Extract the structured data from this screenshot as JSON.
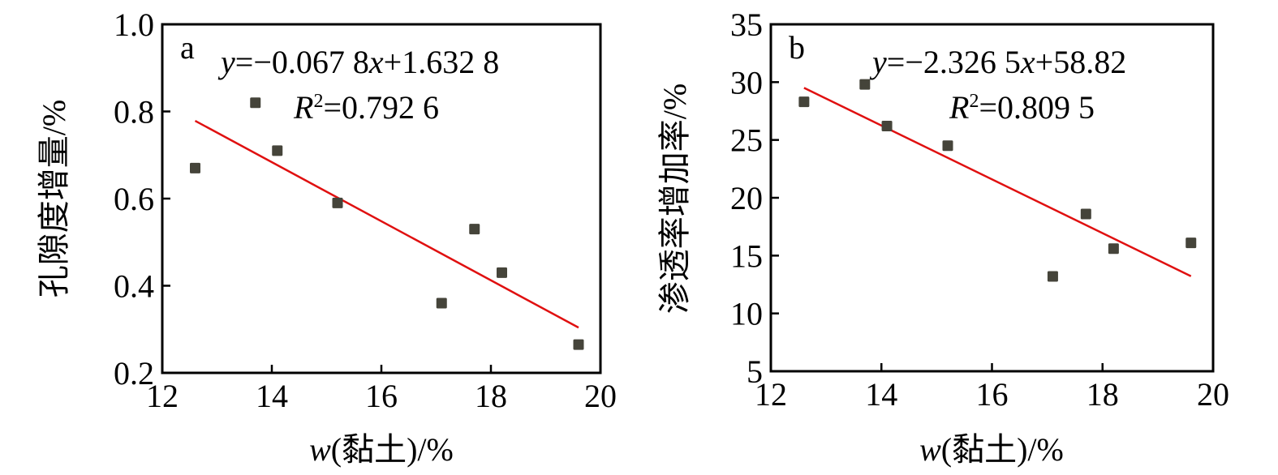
{
  "chart_data": [
    {
      "type": "scatter",
      "panel_label": "a",
      "xlabel_var": "w",
      "xlabel_rest": "(黏土)/%",
      "ylabel": "孔隙度增量/%",
      "xlim": [
        12,
        20
      ],
      "ylim": [
        0.2,
        1.0
      ],
      "xticks": [
        "12",
        "14",
        "16",
        "18",
        "20"
      ],
      "yticks": [
        "0.2",
        "0.4",
        "0.6",
        "0.8",
        "1.0"
      ],
      "x": [
        12.6,
        13.7,
        14.1,
        15.2,
        17.1,
        17.7,
        18.2,
        19.6
      ],
      "y": [
        0.67,
        0.82,
        0.71,
        0.59,
        0.36,
        0.53,
        0.43,
        0.265
      ],
      "fit": {
        "slope": -0.0678,
        "intercept": 1.6328,
        "x_range": [
          12.6,
          19.6
        ]
      },
      "equation_y": "y",
      "equation_rest": "=−0.067 8",
      "equation_x": "x",
      "equation_tail": "+1.632 8",
      "r2_label": "R",
      "r2_sup": "2",
      "r2_value": "=0.792 6",
      "colors": {
        "marker": "#45443a",
        "fit": "#e01010"
      }
    },
    {
      "type": "scatter",
      "panel_label": "b",
      "xlabel_var": "w",
      "xlabel_rest": "(黏土)/%",
      "ylabel": "渗透率增加率/%",
      "xlim": [
        12,
        20
      ],
      "ylim": [
        5,
        35
      ],
      "xticks": [
        "12",
        "14",
        "16",
        "18",
        "20"
      ],
      "yticks": [
        "5",
        "10",
        "15",
        "20",
        "25",
        "30",
        "35"
      ],
      "x": [
        12.6,
        13.7,
        14.1,
        15.2,
        17.1,
        17.7,
        18.2,
        19.6
      ],
      "y": [
        28.3,
        29.8,
        26.2,
        24.5,
        13.2,
        18.6,
        15.6,
        16.1
      ],
      "fit": {
        "slope": -2.3265,
        "intercept": 58.82,
        "x_range": [
          12.6,
          19.6
        ]
      },
      "equation_y": "y",
      "equation_rest": "=−2.326 5",
      "equation_x": "x",
      "equation_tail": "+58.82",
      "r2_label": "R",
      "r2_sup": "2",
      "r2_value": "=0.809 5",
      "colors": {
        "marker": "#45443a",
        "fit": "#e01010"
      }
    }
  ]
}
